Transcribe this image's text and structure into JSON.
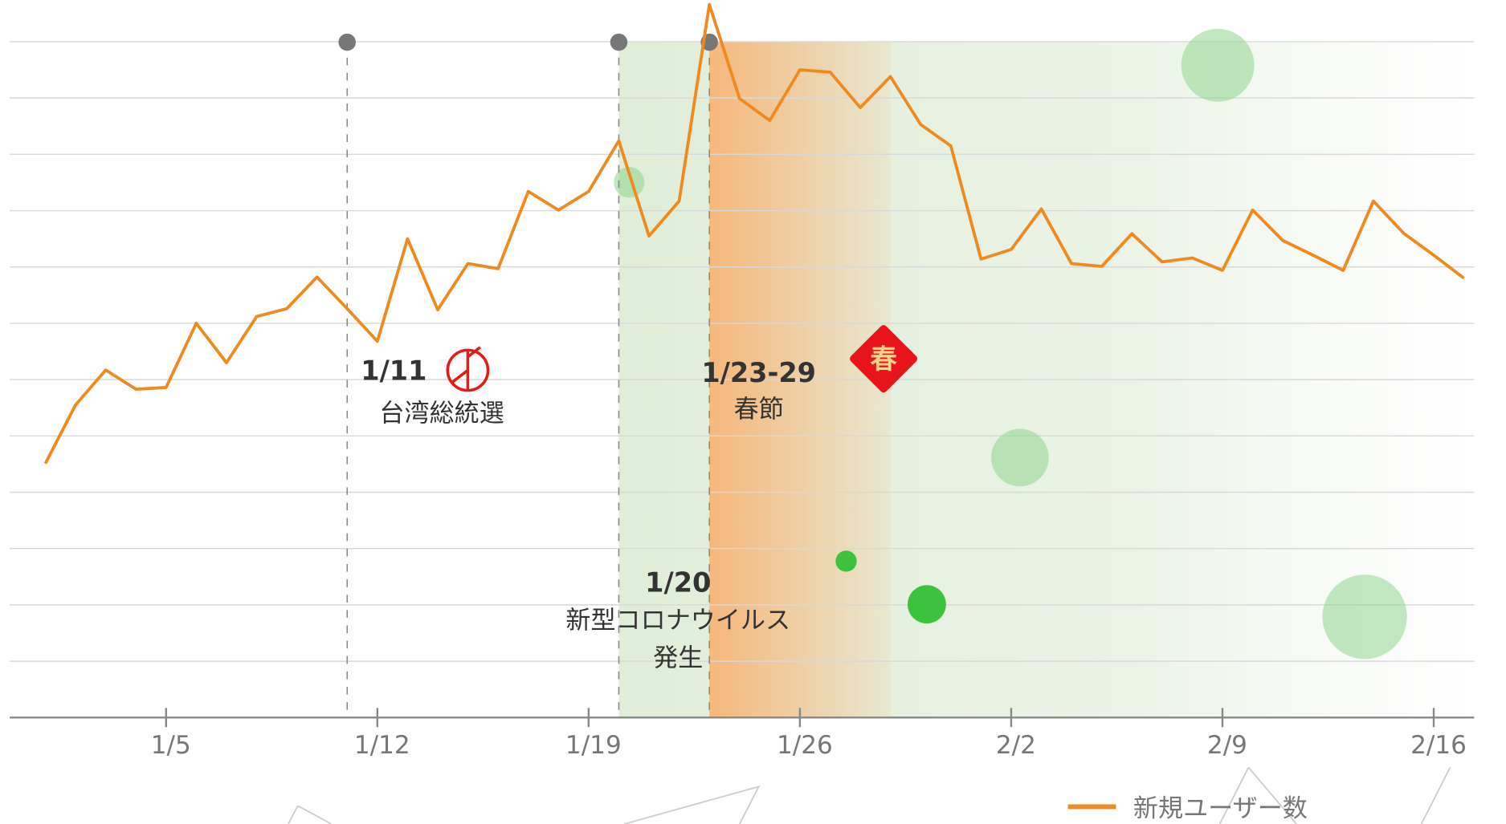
{
  "chart_data": {
    "type": "line",
    "x": [
      1,
      2,
      3,
      4,
      5,
      6,
      7,
      8,
      9,
      10,
      11,
      12,
      13,
      14,
      15,
      16,
      17,
      18,
      19,
      20,
      21,
      22,
      23,
      24,
      25,
      26,
      27,
      28,
      29,
      30,
      31,
      32,
      33,
      34,
      35,
      36,
      37,
      38,
      39,
      40,
      41,
      42,
      43,
      44,
      45,
      46,
      47,
      48
    ],
    "series": [
      {
        "name": "新規ユーザー数",
        "color": "#ef8a1e",
        "values": [
          4.51,
          5.55,
          6.17,
          5.83,
          5.86,
          7.0,
          6.3,
          7.12,
          7.26,
          7.82,
          7.26,
          6.68,
          8.5,
          7.24,
          8.06,
          7.97,
          9.34,
          9.01,
          9.34,
          10.24,
          8.55,
          9.17,
          12.66,
          10.99,
          10.6,
          11.5,
          11.46,
          10.83,
          11.38,
          10.53,
          10.15,
          8.14,
          8.31,
          9.03,
          8.06,
          8.01,
          8.59,
          8.09,
          8.16,
          7.94,
          9.01,
          8.47,
          8.21,
          7.94,
          9.17,
          8.6,
          8.21,
          7.8
        ]
      }
    ],
    "xlim": [
      -0.18,
      48.34
    ],
    "xticks": [
      {
        "value": 5,
        "label": "1/5"
      },
      {
        "value": 12,
        "label": "1/12"
      },
      {
        "value": 19,
        "label": "1/19"
      },
      {
        "value": 26,
        "label": "1/26"
      },
      {
        "value": 33,
        "label": "2/2"
      },
      {
        "value": 40,
        "label": "2/9"
      },
      {
        "value": 47,
        "label": "2/16"
      }
    ],
    "ylim": [
      0,
      12.74
    ],
    "yticks": [
      1,
      2,
      3,
      4,
      5,
      6,
      7,
      8,
      9,
      10,
      11,
      12
    ],
    "grid": true,
    "legend": "bottom-right",
    "regions": [
      {
        "from": 20,
        "to": 48.34,
        "color": "#dcebd3"
      },
      {
        "from": 23,
        "to": 29,
        "color": "#f6b77c"
      }
    ],
    "events": [
      {
        "x": 11,
        "date": "1/11",
        "text": [
          "台湾総統選"
        ]
      },
      {
        "x": 20,
        "date": "1/20",
        "text": [
          "新型コロナウイルス",
          "発生"
        ]
      },
      {
        "x": 23,
        "date": "1/23-29",
        "text": [
          "春節"
        ],
        "icon": "春"
      }
    ]
  }
}
